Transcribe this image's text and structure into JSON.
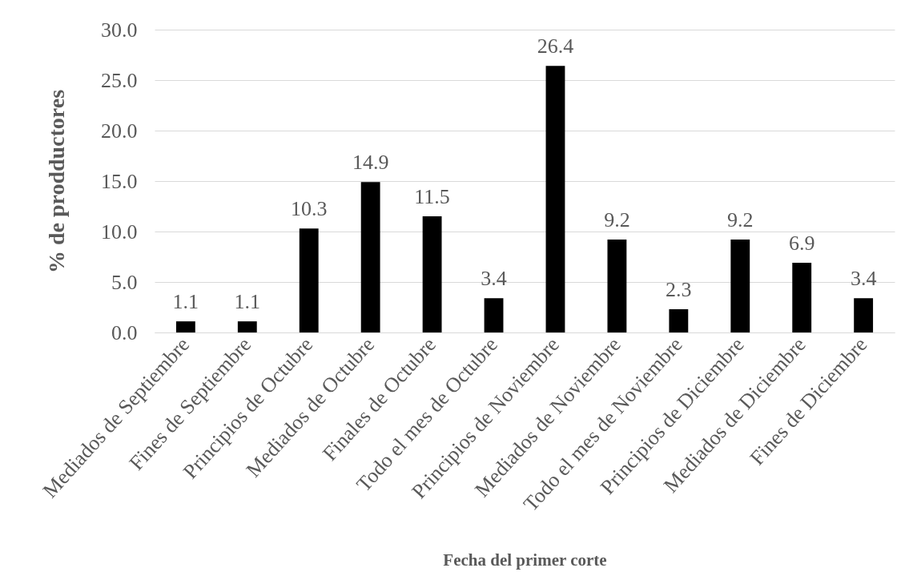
{
  "chart_data": {
    "type": "bar",
    "xlabel": "Fecha del primer corte",
    "ylabel": "% de prodductores",
    "categories": [
      "Mediados de Septiembre",
      "Fines de Septiembre",
      "Principios de Octubre",
      "Mediados de Octubre",
      "Finales de Octubre",
      "Todo el mes de Octubre",
      "Principios de Noviembre",
      "Mediados de Noviembre",
      "Todo el mes de Noviembre",
      "Principios de Diciembre",
      "Mediados de Diciembre",
      "Fines de Diciembre"
    ],
    "values": [
      1.1,
      1.1,
      10.3,
      14.9,
      11.5,
      3.4,
      26.4,
      9.2,
      2.3,
      9.2,
      6.9,
      3.4
    ],
    "color": "#000000",
    "ylim": [
      0,
      30
    ],
    "yticks": [
      {
        "value": 0,
        "label": "0.0"
      },
      {
        "value": 5,
        "label": "5.0"
      },
      {
        "value": 10,
        "label": "10.0"
      },
      {
        "value": 15,
        "label": "15.0"
      },
      {
        "value": 20,
        "label": "20.0"
      },
      {
        "value": 25,
        "label": "25.0"
      },
      {
        "value": 30,
        "label": "30.0"
      }
    ],
    "grid": "y",
    "data_labels": true
  }
}
